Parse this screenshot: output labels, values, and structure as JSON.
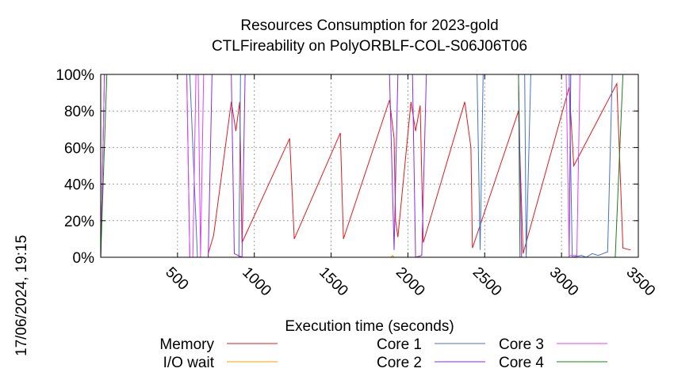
{
  "chart_data": {
    "type": "line",
    "title": [
      "Resources Consumption for 2023-gold",
      "CTLFireability on PolyORBLF-COL-S06J06T06"
    ],
    "xlabel": "Execution time (seconds)",
    "ylabel": "",
    "timestamp": "17/06/2024, 19:15",
    "xlim": [
      0,
      3500
    ],
    "ylim": [
      0,
      100
    ],
    "xticks": [
      500,
      1000,
      1500,
      2000,
      2500,
      3000,
      3500
    ],
    "yticks": [
      0,
      20,
      40,
      60,
      80,
      100
    ],
    "ytick_labels": [
      "0%",
      "20%",
      "40%",
      "60%",
      "80%",
      "100%"
    ],
    "grid": true,
    "legend_position": "bottom",
    "series": [
      {
        "name": "Memory",
        "color": "#e31a1c",
        "points": [
          [
            0,
            0
          ],
          [
            700,
            0
          ],
          [
            700,
            2
          ],
          [
            735,
            12
          ],
          [
            850,
            85
          ],
          [
            880,
            69
          ],
          [
            905,
            85
          ],
          [
            920,
            8
          ],
          [
            1230,
            65
          ],
          [
            1260,
            10
          ],
          [
            1560,
            68
          ],
          [
            1580,
            10
          ],
          [
            1880,
            86
          ],
          [
            1910,
            65
          ],
          [
            1920,
            20
          ],
          [
            1935,
            11
          ],
          [
            2020,
            85
          ],
          [
            2050,
            69
          ],
          [
            2080,
            83
          ],
          [
            2100,
            8
          ],
          [
            2370,
            85
          ],
          [
            2410,
            60
          ],
          [
            2420,
            5
          ],
          [
            2720,
            80
          ],
          [
            2750,
            2
          ],
          [
            3050,
            93
          ],
          [
            3080,
            50
          ],
          [
            3360,
            95
          ],
          [
            3380,
            50
          ],
          [
            3400,
            5
          ],
          [
            3450,
            4
          ]
        ]
      },
      {
        "name": "I/O wait",
        "color": "#ff9900",
        "points": [
          [
            0,
            0
          ],
          [
            1890,
            0
          ],
          [
            1900,
            1
          ],
          [
            1910,
            0
          ],
          [
            3450,
            0
          ]
        ]
      },
      {
        "name": "Core 1",
        "color": "#4472c4",
        "points": [
          [
            0,
            0
          ],
          [
            25,
            100
          ],
          [
            580,
            100
          ],
          [
            630,
            0
          ],
          [
            900,
            0
          ],
          [
            910,
            100
          ],
          [
            2450,
            100
          ],
          [
            2470,
            4
          ],
          [
            2490,
            100
          ],
          [
            2760,
            100
          ],
          [
            2770,
            0
          ],
          [
            2800,
            100
          ],
          [
            3050,
            100
          ],
          [
            3070,
            0
          ],
          [
            3130,
            1
          ],
          [
            3160,
            0
          ],
          [
            3200,
            2
          ],
          [
            3240,
            1
          ],
          [
            3300,
            3
          ],
          [
            3330,
            100
          ],
          [
            3450,
            100
          ]
        ]
      },
      {
        "name": "Core 2",
        "color": "#8a2be2",
        "points": [
          [
            0,
            0
          ],
          [
            25,
            100
          ],
          [
            560,
            100
          ],
          [
            580,
            0
          ],
          [
            700,
            0
          ],
          [
            725,
            100
          ],
          [
            850,
            100
          ],
          [
            870,
            2
          ],
          [
            920,
            0
          ],
          [
            940,
            100
          ],
          [
            1880,
            100
          ],
          [
            1910,
            4
          ],
          [
            1935,
            100
          ],
          [
            2030,
            100
          ],
          [
            2050,
            0
          ],
          [
            2090,
            1
          ],
          [
            2120,
            100
          ],
          [
            2720,
            100
          ],
          [
            2740,
            0
          ],
          [
            3050,
            0
          ],
          [
            3060,
            100
          ],
          [
            3450,
            100
          ]
        ]
      },
      {
        "name": "Core 3",
        "color": "#e040fb",
        "points": [
          [
            0,
            0
          ],
          [
            25,
            100
          ],
          [
            560,
            100
          ],
          [
            580,
            0
          ],
          [
            600,
            0
          ],
          [
            620,
            100
          ],
          [
            635,
            100
          ],
          [
            650,
            0
          ],
          [
            670,
            100
          ],
          [
            3030,
            100
          ],
          [
            3050,
            1
          ],
          [
            3100,
            1
          ],
          [
            3120,
            100
          ],
          [
            3450,
            100
          ]
        ]
      },
      {
        "name": "Core 4",
        "color": "#1a7f1a",
        "points": [
          [
            0,
            0
          ],
          [
            40,
            100
          ],
          [
            2720,
            100
          ],
          [
            2730,
            0
          ],
          [
            3350,
            0
          ],
          [
            3400,
            100
          ],
          [
            3450,
            100
          ]
        ]
      }
    ]
  }
}
